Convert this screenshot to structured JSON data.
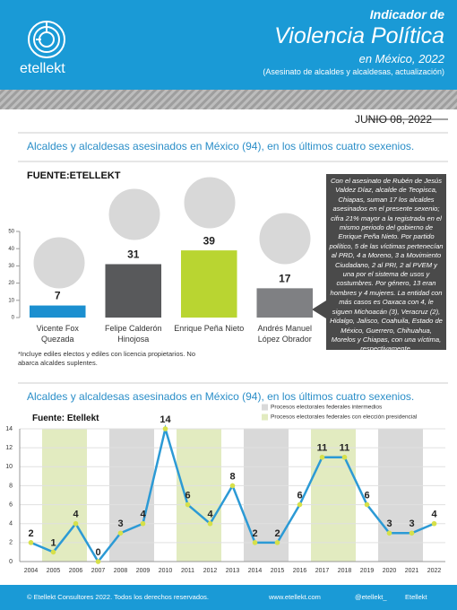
{
  "header": {
    "brand": "etellekt",
    "title_1": "Indicador de",
    "title_2": "Violencia Política",
    "title_3": "en México, 2022",
    "title_4": "(Asesinato de alcaldes y alcaldesas, actualización)"
  },
  "date": "JUNIO 08, 2022",
  "note": "Con el asesinato de Rubén de Jesús Valdez Díaz, alcalde de Teopisca, Chiapas, suman 17 los alcaldes asesinados en el presente sexenio; cifra 21% mayor a la registrada en el mismo periodo del gobierno de Enrique Peña Nieto. Por partido político, 5 de las víctimas pertenecían al PRD, 4 a Moreno, 3 a Movimiento Ciudadano, 2 al PRI, 2 al PVEM y una por el sistema de usos y costumbres. Por género, 13 eran hombres y 4 mujeres. La entidad con más casos es Oaxaca con 4, le siguen Michoacán (3), Veracruz (2), Hidalgo, Jalisco, Coahuila, Estado de México, Guerrero, Chihuahua, Morelos y Chiapas, con una víctima, respectivamente.",
  "footnote": "*Incluye ediles electos y ediles con licencia propietarios. No abarca alcaldes suplentes.",
  "footer": {
    "copyright": "© Etellekt Consultores 2022.  Todos los derechos reservados.",
    "web": "www.etellekt.com",
    "twitter": "@etellekt_",
    "facebook": "Etellekt"
  },
  "chart_data": [
    {
      "type": "bar",
      "title": "Alcaldes y alcaldesas asesinados en México (94), en los últimos cuatro sexenios.",
      "source": "FUENTE:ETELLEKT",
      "categories": [
        "Vicente Fox Quezada",
        "Felipe Calderón Hinojosa",
        "Enrique Peña Nieto",
        "Andrés Manuel López Obrador"
      ],
      "values": [
        7,
        31,
        39,
        17
      ],
      "colors": [
        "#1b8fd0",
        "#58595b",
        "#b9d531",
        "#7f8083"
      ],
      "ylim": [
        0,
        50
      ],
      "yticks": [
        0,
        10,
        20,
        30,
        40,
        50
      ]
    },
    {
      "type": "line",
      "title": "Alcaldes y alcaldesas asesinados en México (94), en los últimos cuatro sexenios.",
      "source": "Fuente:  Etellekt",
      "x": [
        2004,
        2005,
        2006,
        2007,
        2008,
        2009,
        2010,
        2011,
        2012,
        2013,
        2014,
        2015,
        2016,
        2017,
        2018,
        2019,
        2020,
        2021,
        2022
      ],
      "values": [
        2,
        1,
        4,
        0,
        3,
        4,
        14,
        6,
        4,
        8,
        2,
        2,
        6,
        11,
        11,
        6,
        3,
        3,
        4
      ],
      "color": "#2c9ad5",
      "marker_color": "#d6e04a",
      "xlim": [
        2003.5,
        2022.5
      ],
      "ylim": [
        0,
        14
      ],
      "yticks": [
        0,
        2,
        4,
        6,
        8,
        10,
        12,
        14
      ],
      "grid": true,
      "bands": [
        {
          "name": "Procesos electorales federales  intermedios",
          "color": "#d9d9d9",
          "spans": [
            [
              2008,
              2009
            ],
            [
              2014,
              2015
            ],
            [
              2020,
              2021
            ]
          ]
        },
        {
          "name": "Procesos electorales federales con elección presidencial",
          "color": "#e2ebc0",
          "spans": [
            [
              2005,
              2006
            ],
            [
              2011,
              2012
            ],
            [
              2017,
              2018
            ]
          ]
        }
      ]
    }
  ]
}
